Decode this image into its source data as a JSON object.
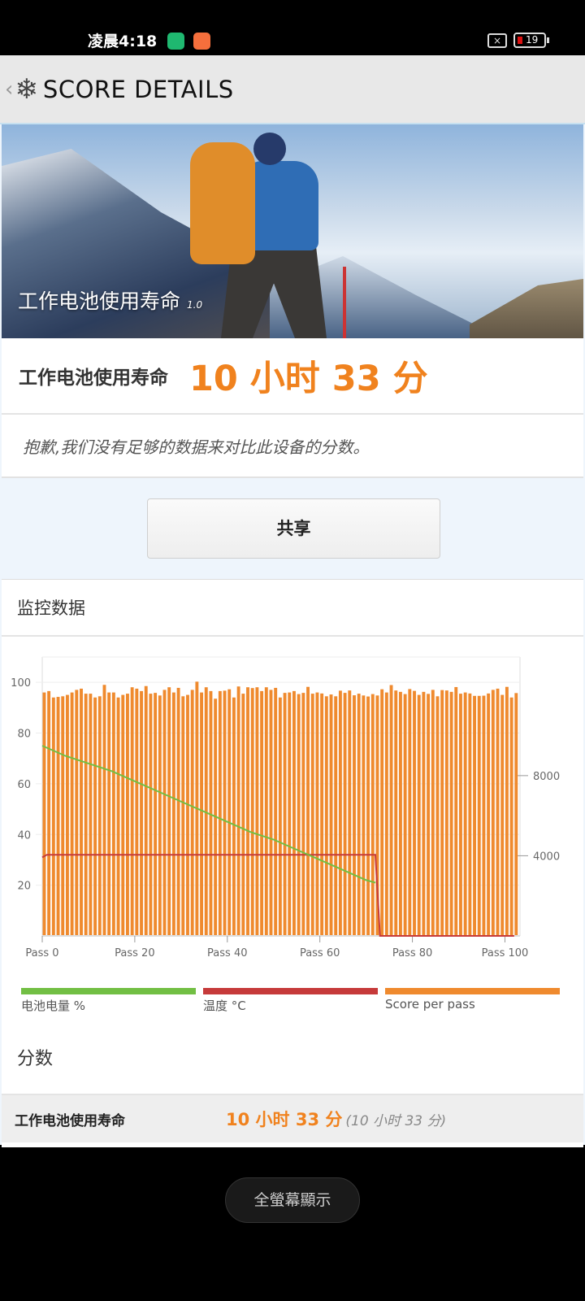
{
  "status_bar": {
    "time": "凌晨4:18",
    "sim_icon": "sim-none-icon",
    "battery_level": "19",
    "app_icons": [
      "security-shield-icon",
      "mi-store-icon"
    ]
  },
  "header": {
    "back_icon": "chevron-left-icon",
    "logo_icon": "snowflake-icon",
    "title": "SCORE DETAILS"
  },
  "hero": {
    "title": "工作电池使用寿命",
    "version": "1.0"
  },
  "score": {
    "label": "工作电池使用寿命",
    "value": "10 小时 33 分"
  },
  "note": "抱歉,我们没有足够的数据来对比此设备的分数。",
  "share_label": "共享",
  "monitor": {
    "title": "监控数据"
  },
  "colors": {
    "accent": "#f0821e",
    "battery": "#72bf44",
    "temperature": "#c63a3a",
    "score": "#ef8a2e"
  },
  "chart_data": {
    "type": "bar+line",
    "x_tick_labels": [
      "Pass 0",
      "Pass 20",
      "Pass 40",
      "Pass 60",
      "Pass 80",
      "Pass 100"
    ],
    "x_ticks": [
      0,
      20,
      40,
      60,
      80,
      100
    ],
    "left_axis": {
      "range": [
        0,
        110
      ],
      "ticks": [
        20,
        40,
        60,
        80,
        100
      ]
    },
    "right_axis": {
      "range": [
        0,
        13920
      ],
      "ticks": [
        4000,
        8000
      ]
    },
    "grid": true,
    "legend_position": "bottom",
    "series": [
      {
        "name": "电池电量 %",
        "type": "line",
        "axis": "left",
        "points": [
          [
            0,
            75
          ],
          [
            5,
            71
          ],
          [
            10,
            68
          ],
          [
            15,
            65
          ],
          [
            20,
            61
          ],
          [
            25,
            57
          ],
          [
            30,
            53
          ],
          [
            35,
            49
          ],
          [
            40,
            45
          ],
          [
            45,
            41
          ],
          [
            50,
            38
          ],
          [
            55,
            34
          ],
          [
            60,
            30
          ],
          [
            65,
            26
          ],
          [
            70,
            22
          ],
          [
            72,
            21
          ]
        ]
      },
      {
        "name": "温度 °C",
        "type": "line",
        "axis": "left",
        "points": [
          [
            0,
            31
          ],
          [
            1,
            32
          ],
          [
            72,
            32
          ],
          [
            73,
            0
          ],
          [
            102,
            0
          ]
        ]
      },
      {
        "name": "Score per pass",
        "type": "bar",
        "axis": "right",
        "values": [
          12150,
          12220,
          11900,
          11930,
          11960,
          12030,
          12150,
          12280,
          12340,
          12090,
          12090,
          11900,
          11960,
          12530,
          12150,
          12150,
          11900,
          12030,
          12090,
          12410,
          12340,
          12220,
          12470,
          12090,
          12130,
          12000,
          12280,
          12410,
          12150,
          12380,
          11960,
          12030,
          12280,
          12690,
          12150,
          12410,
          12220,
          11840,
          12220,
          12240,
          12310,
          11900,
          12450,
          12090,
          12410,
          12370,
          12410,
          12220,
          12410,
          12280,
          12380,
          11900,
          12130,
          12150,
          12220,
          12070,
          12130,
          12430,
          12090,
          12150,
          12100,
          11960,
          12050,
          11960,
          12240,
          12130,
          12250,
          12010,
          12090,
          12000,
          11950,
          12070,
          12000,
          12310,
          12150,
          12520,
          12250,
          12180,
          12070,
          12320,
          12230,
          12030,
          12180,
          12080,
          12280,
          11960,
          12270,
          12250,
          12180,
          12420,
          12090,
          12150,
          12100,
          11980,
          11980,
          11990,
          12100,
          12280,
          12340,
          12030,
          12430,
          11900,
          12120
        ]
      }
    ]
  },
  "scores_section": {
    "title": "分数",
    "rows": [
      {
        "label": "工作电池使用寿命",
        "value": "10 小时 33 分",
        "previous": "(10 小时 33 分)"
      }
    ]
  },
  "fullscreen_label": "全螢幕顯示"
}
